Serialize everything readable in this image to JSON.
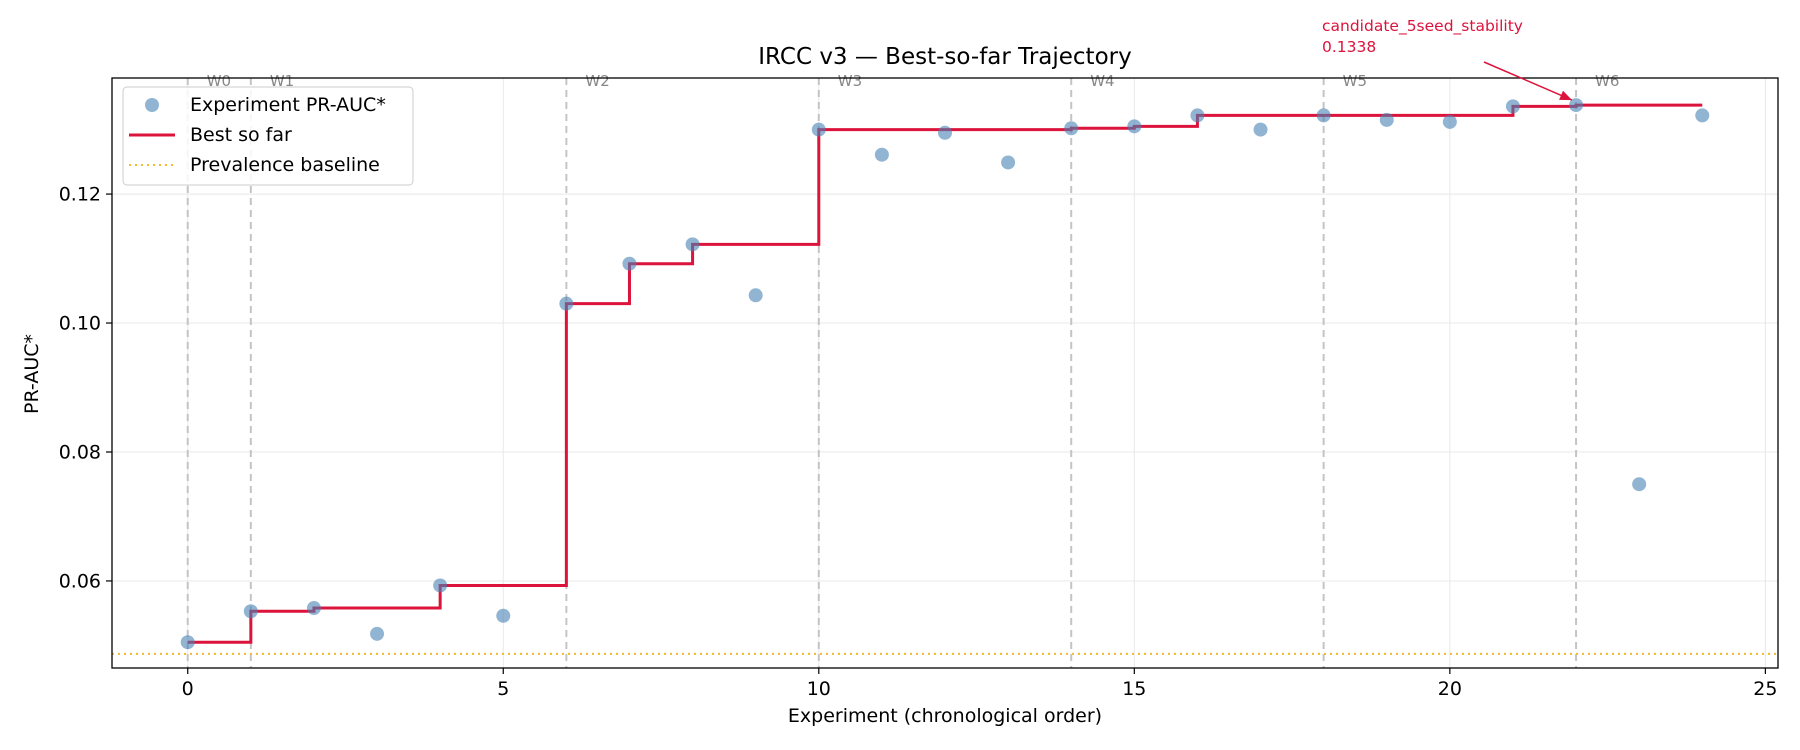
{
  "chart_data": {
    "type": "scatter",
    "title": "IRCC v3 — Best-so-far Trajectory",
    "xlabel": "Experiment (chronological order)",
    "ylabel": "PR-AUC*",
    "xlim": [
      -1.2,
      25.2
    ],
    "ylim": [
      0.0465,
      0.138
    ],
    "x_ticks": [
      0,
      5,
      10,
      15,
      20,
      25
    ],
    "x_tick_labels": [
      "0",
      "5",
      "10",
      "15",
      "20",
      "25"
    ],
    "y_ticks": [
      0.06,
      0.08,
      0.1,
      0.12
    ],
    "y_tick_labels": [
      "0.06",
      "0.08",
      "0.10",
      "0.12"
    ],
    "grid": true,
    "legend_position": "top-left",
    "series": [
      {
        "name": "Experiment PR-AUC*",
        "kind": "scatter",
        "color": "#4682b4",
        "x": [
          0,
          1,
          2,
          3,
          4,
          5,
          6,
          7,
          8,
          9,
          10,
          11,
          12,
          13,
          14,
          15,
          16,
          17,
          18,
          19,
          20,
          21,
          22,
          23,
          24
        ],
        "values": [
          0.0505,
          0.0553,
          0.0558,
          0.0518,
          0.0593,
          0.0546,
          0.103,
          0.1092,
          0.1122,
          0.1043,
          0.13,
          0.1261,
          0.1295,
          0.1249,
          0.1302,
          0.1305,
          0.1322,
          0.13,
          0.1322,
          0.1315,
          0.1312,
          0.1336,
          0.1338,
          0.075,
          0.1322
        ]
      },
      {
        "name": "Best so far",
        "kind": "step",
        "color": "#dc143c",
        "x": [
          0,
          1,
          2,
          3,
          4,
          5,
          6,
          7,
          8,
          9,
          10,
          11,
          12,
          13,
          14,
          15,
          16,
          17,
          18,
          19,
          20,
          21,
          22,
          23,
          24
        ],
        "values": [
          0.0505,
          0.0553,
          0.0558,
          0.0558,
          0.0593,
          0.0593,
          0.103,
          0.1092,
          0.1122,
          0.1122,
          0.13,
          0.13,
          0.13,
          0.13,
          0.1302,
          0.1305,
          0.1322,
          0.1322,
          0.1322,
          0.1322,
          0.1322,
          0.1336,
          0.1338,
          0.1338,
          0.1338
        ]
      },
      {
        "name": "Prevalence baseline",
        "kind": "hline",
        "color": "#f5b82e",
        "value": 0.0487
      }
    ],
    "phases": [
      {
        "label": "W0",
        "x": 0
      },
      {
        "label": "W1",
        "x": 1
      },
      {
        "label": "W2",
        "x": 6
      },
      {
        "label": "W3",
        "x": 10
      },
      {
        "label": "W4",
        "x": 14
      },
      {
        "label": "W5",
        "x": 18
      },
      {
        "label": "W6",
        "x": 22
      }
    ],
    "annotation": {
      "name": "candidate_5seed_stability",
      "value_text": "0.1338",
      "x": 22,
      "y": 0.1338,
      "color": "#dc143c"
    }
  }
}
